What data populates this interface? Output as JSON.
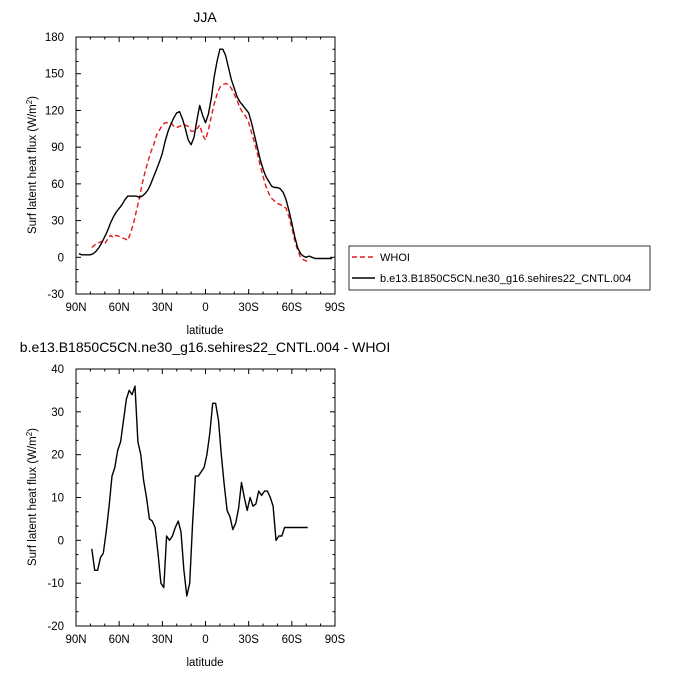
{
  "chart_data": [
    {
      "type": "line",
      "title": "JJA",
      "xlabel": "latitude",
      "ylabel": "Surf latent heat flux (W/m",
      "ylabel_sup": "2",
      "ylabel_close": ")",
      "xlim": [
        90,
        -90
      ],
      "ylim": [
        -30,
        180
      ],
      "xticks": [
        90,
        60,
        30,
        0,
        -30,
        -60,
        -90
      ],
      "xtick_labels": [
        "90N",
        "60N",
        "30N",
        "0",
        "30S",
        "60S",
        "90S"
      ],
      "yticks": [
        -30,
        0,
        30,
        60,
        90,
        120,
        150,
        180
      ],
      "ytick_labels": [
        "-30",
        "0",
        "30",
        "60",
        "90",
        "120",
        "150",
        "180"
      ],
      "legend": "right",
      "series": [
        {
          "name": "WHOI",
          "color": "#e41a1c",
          "dash": "dashed",
          "x": [
            79,
            77,
            74,
            72,
            70,
            68,
            66,
            64,
            62,
            60,
            58,
            56,
            54,
            52,
            50,
            48,
            46,
            44,
            42,
            40,
            38,
            36,
            34,
            32,
            30,
            28,
            26,
            24,
            22,
            20,
            18,
            16,
            14,
            12,
            10,
            8,
            6,
            4,
            2,
            0,
            -2,
            -4,
            -6,
            -8,
            -10,
            -12,
            -14,
            -16,
            -18,
            -20,
            -22,
            -24,
            -26,
            -28,
            -30,
            -32,
            -34,
            -36,
            -38,
            -40,
            -42,
            -44,
            -46,
            -48,
            -50,
            -52,
            -54,
            -56,
            -58,
            -60,
            -62,
            -64,
            -66,
            -68,
            -70,
            -72
          ],
          "y": [
            8,
            10,
            12,
            13,
            11,
            15,
            18,
            16,
            18,
            17,
            16,
            15,
            14,
            20,
            28,
            38,
            48,
            60,
            70,
            78,
            86,
            92,
            100,
            104,
            108,
            110,
            110,
            110,
            107,
            106,
            107,
            108,
            108,
            107,
            103,
            103,
            105,
            108,
            100,
            96,
            104,
            115,
            125,
            133,
            139,
            141,
            142,
            141,
            138,
            133,
            128,
            122,
            118,
            115,
            110,
            102,
            94,
            85,
            75,
            66,
            58,
            52,
            48,
            46,
            44,
            43,
            42,
            40,
            33,
            24,
            14,
            6,
            0,
            -2,
            -3,
            -3
          ]
        },
        {
          "name": "b.e13.B1850C5CN.ne30_g16.sehires22_CNTL.004",
          "color": "#000000",
          "dash": "solid",
          "x": [
            88,
            86,
            84,
            82,
            80,
            78,
            76,
            74,
            72,
            70,
            68,
            66,
            64,
            62,
            60,
            58,
            56,
            54,
            52,
            50,
            48,
            46,
            44,
            42,
            40,
            38,
            36,
            34,
            32,
            30,
            28,
            26,
            24,
            22,
            20,
            18,
            16,
            14,
            12,
            10,
            8,
            6,
            4,
            2,
            0,
            -2,
            -4,
            -6,
            -8,
            -10,
            -12,
            -14,
            -16,
            -18,
            -20,
            -22,
            -24,
            -26,
            -28,
            -30,
            -32,
            -34,
            -36,
            -38,
            -40,
            -42,
            -44,
            -46,
            -48,
            -50,
            -52,
            -54,
            -56,
            -58,
            -60,
            -62,
            -64,
            -66,
            -68,
            -70,
            -72,
            -74,
            -76,
            -78,
            -80,
            -82,
            -84,
            -86,
            -88
          ],
          "y": [
            3,
            2,
            2,
            2,
            2,
            3,
            5,
            8,
            12,
            17,
            22,
            28,
            33,
            37,
            40,
            43,
            47,
            50,
            50,
            50,
            50,
            49,
            50,
            52,
            55,
            60,
            66,
            72,
            78,
            85,
            95,
            103,
            109,
            114,
            118,
            119,
            113,
            105,
            96,
            92,
            98,
            112,
            124,
            116,
            110,
            117,
            130,
            147,
            160,
            170,
            170,
            165,
            155,
            145,
            138,
            131,
            127,
            124,
            121,
            118,
            110,
            100,
            90,
            80,
            72,
            66,
            62,
            58,
            57,
            57,
            56,
            53,
            47,
            38,
            28,
            17,
            8,
            3,
            1,
            0,
            1,
            0,
            -1,
            -1,
            -1,
            -1,
            -1,
            -1,
            -1
          ]
        }
      ]
    },
    {
      "type": "line",
      "title": "b.e13.B1850C5CN.ne30_g16.sehires22_CNTL.004 - WHOI",
      "xlabel": "latitude",
      "ylabel": "Surf latent heat flux (W/m",
      "ylabel_sup": "2",
      "ylabel_close": ")",
      "xlim": [
        90,
        -90
      ],
      "ylim": [
        -20,
        40
      ],
      "xticks": [
        90,
        60,
        30,
        0,
        -30,
        -60,
        -90
      ],
      "xtick_labels": [
        "90N",
        "60N",
        "30N",
        "0",
        "30S",
        "60S",
        "90S"
      ],
      "yticks": [
        -20,
        -10,
        0,
        10,
        20,
        30,
        40
      ],
      "ytick_labels": [
        "-20",
        "-10",
        "0",
        "10",
        "20",
        "30",
        "40"
      ],
      "series": [
        {
          "color": "#000000",
          "dash": "solid",
          "x": [
            79,
            77,
            75,
            73,
            71,
            69,
            67,
            65,
            63,
            61,
            59,
            57,
            55,
            53,
            51,
            49,
            47,
            45,
            43,
            41,
            39,
            37,
            35,
            33,
            31,
            29,
            27,
            25,
            23,
            21,
            19,
            17,
            15,
            13,
            11,
            9,
            7,
            5,
            3,
            1,
            -1,
            -3,
            -5,
            -7,
            -9,
            -11,
            -13,
            -15,
            -17,
            -19,
            -21,
            -23,
            -25,
            -27,
            -29,
            -31,
            -33,
            -35,
            -37,
            -39,
            -41,
            -43,
            -45,
            -47,
            -49,
            -51,
            -53,
            -55,
            -57,
            -59,
            -61,
            -63,
            -65,
            -67,
            -69,
            -71
          ],
          "y": [
            -2,
            -7,
            -7,
            -4,
            -3,
            2,
            8,
            15,
            17,
            21,
            23,
            28,
            33,
            35,
            34,
            36,
            23,
            20,
            14,
            10,
            5,
            4.5,
            3,
            -3,
            -10,
            -11,
            1,
            0,
            1,
            3,
            4.5,
            2,
            -7,
            -13,
            -10,
            4,
            15,
            15,
            16,
            17,
            20,
            25,
            32,
            32,
            28,
            20,
            13,
            7,
            5.5,
            2.5,
            4,
            7.5,
            13.5,
            10,
            7,
            10,
            8,
            8.5,
            11.5,
            10.5,
            11.5,
            11.5,
            10,
            8,
            0,
            1,
            1,
            3,
            3,
            3,
            3,
            3,
            3,
            3,
            3,
            3
          ]
        }
      ]
    }
  ]
}
